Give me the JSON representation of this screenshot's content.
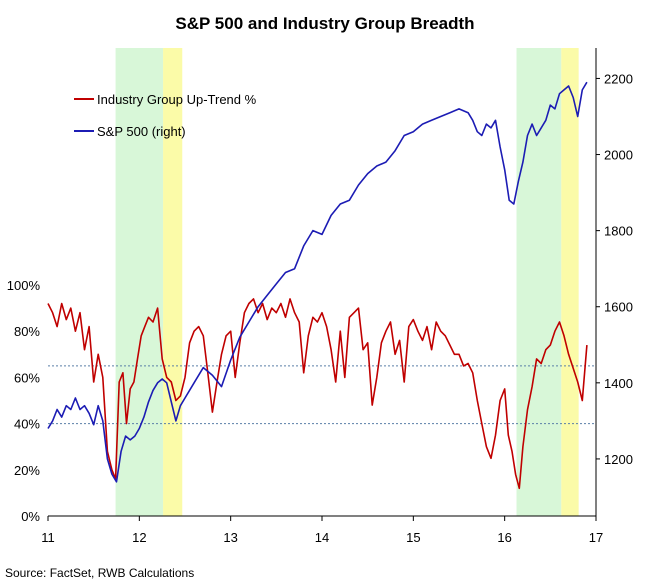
{
  "chart_data": {
    "type": "line",
    "title": "S&P 500 and Industry Group Breadth",
    "source": "Source: FactSet, RWB Calculations",
    "x_ticks": [
      "11",
      "12",
      "13",
      "14",
      "15",
      "16",
      "17"
    ],
    "xlim": [
      2011,
      2017
    ],
    "y_left": {
      "ticks": [
        "0%",
        "20%",
        "40%",
        "60%",
        "80%",
        "100%"
      ],
      "values": [
        0,
        20,
        40,
        60,
        80,
        100
      ],
      "lim": [
        0,
        100
      ]
    },
    "y_right": {
      "ticks": [
        "1200",
        "1400",
        "1600",
        "1800",
        "2000",
        "2200"
      ],
      "values": [
        1200,
        1400,
        1600,
        1800,
        2000,
        2200
      ],
      "lim": [
        1050,
        2280
      ]
    },
    "reference_lines": [
      65,
      40
    ],
    "shaded_regions": [
      {
        "from": 2011.74,
        "to": 2012.26,
        "color": "#d8f7d8"
      },
      {
        "from": 2012.26,
        "to": 2012.47,
        "color": "#fbfba8"
      },
      {
        "from": 2016.13,
        "to": 2016.62,
        "color": "#d8f7d8"
      },
      {
        "from": 2016.62,
        "to": 2016.81,
        "color": "#fbfba8"
      }
    ],
    "legend_position": "top-left",
    "series": [
      {
        "name": "Industry Group Up-Trend %",
        "axis": "left",
        "color": "#c00000",
        "x": [
          2011.0,
          2011.05,
          2011.1,
          2011.15,
          2011.2,
          2011.25,
          2011.3,
          2011.35,
          2011.4,
          2011.45,
          2011.5,
          2011.55,
          2011.6,
          2011.65,
          2011.7,
          2011.74,
          2011.78,
          2011.82,
          2011.86,
          2011.9,
          2011.94,
          2011.98,
          2012.02,
          2012.06,
          2012.1,
          2012.15,
          2012.2,
          2012.25,
          2012.3,
          2012.35,
          2012.4,
          2012.45,
          2012.5,
          2012.55,
          2012.6,
          2012.65,
          2012.7,
          2012.75,
          2012.8,
          2012.85,
          2012.9,
          2012.95,
          2013.0,
          2013.05,
          2013.1,
          2013.15,
          2013.2,
          2013.25,
          2013.3,
          2013.35,
          2013.4,
          2013.45,
          2013.5,
          2013.55,
          2013.6,
          2013.65,
          2013.7,
          2013.75,
          2013.8,
          2013.85,
          2013.9,
          2013.95,
          2014.0,
          2014.05,
          2014.1,
          2014.15,
          2014.2,
          2014.25,
          2014.3,
          2014.35,
          2014.4,
          2014.45,
          2014.5,
          2014.55,
          2014.6,
          2014.65,
          2014.7,
          2014.75,
          2014.8,
          2014.85,
          2014.9,
          2014.95,
          2015.0,
          2015.05,
          2015.1,
          2015.15,
          2015.2,
          2015.25,
          2015.3,
          2015.35,
          2015.4,
          2015.45,
          2015.5,
          2015.55,
          2015.6,
          2015.65,
          2015.7,
          2015.75,
          2015.8,
          2015.85,
          2015.9,
          2015.95,
          2016.0,
          2016.04,
          2016.08,
          2016.12,
          2016.16,
          2016.2,
          2016.25,
          2016.3,
          2016.35,
          2016.4,
          2016.45,
          2016.5,
          2016.55,
          2016.6,
          2016.65,
          2016.7,
          2016.75,
          2016.8,
          2016.85,
          2016.9
        ],
        "values": [
          92,
          88,
          82,
          92,
          85,
          90,
          80,
          88,
          72,
          82,
          58,
          70,
          60,
          28,
          20,
          16,
          58,
          62,
          40,
          55,
          58,
          68,
          78,
          82,
          86,
          84,
          90,
          68,
          60,
          58,
          50,
          52,
          60,
          75,
          80,
          82,
          78,
          62,
          45,
          58,
          70,
          78,
          80,
          60,
          75,
          88,
          92,
          94,
          88,
          92,
          85,
          90,
          88,
          92,
          86,
          94,
          88,
          84,
          62,
          78,
          86,
          84,
          88,
          82,
          72,
          58,
          80,
          60,
          86,
          88,
          90,
          72,
          75,
          48,
          60,
          75,
          80,
          84,
          70,
          76,
          58,
          82,
          85,
          80,
          76,
          82,
          72,
          84,
          80,
          78,
          74,
          70,
          70,
          65,
          66,
          62,
          50,
          40,
          30,
          25,
          35,
          50,
          55,
          35,
          28,
          18,
          12,
          30,
          46,
          56,
          68,
          66,
          72,
          74,
          80,
          84,
          78,
          70,
          64,
          58,
          50,
          74
        ]
      },
      {
        "name": "S&P 500 (right)",
        "axis": "right",
        "color": "#1c1cb4",
        "x": [
          2011.0,
          2011.05,
          2011.1,
          2011.15,
          2011.2,
          2011.25,
          2011.3,
          2011.35,
          2011.4,
          2011.45,
          2011.5,
          2011.55,
          2011.6,
          2011.65,
          2011.7,
          2011.75,
          2011.8,
          2011.85,
          2011.9,
          2011.95,
          2012.0,
          2012.05,
          2012.1,
          2012.15,
          2012.2,
          2012.25,
          2012.3,
          2012.35,
          2012.4,
          2012.45,
          2012.5,
          2012.6,
          2012.7,
          2012.8,
          2012.9,
          2013.0,
          2013.1,
          2013.2,
          2013.3,
          2013.4,
          2013.5,
          2013.6,
          2013.7,
          2013.8,
          2013.9,
          2014.0,
          2014.1,
          2014.2,
          2014.3,
          2014.4,
          2014.5,
          2014.6,
          2014.7,
          2014.8,
          2014.9,
          2015.0,
          2015.1,
          2015.2,
          2015.3,
          2015.4,
          2015.5,
          2015.6,
          2015.65,
          2015.7,
          2015.75,
          2015.8,
          2015.85,
          2015.9,
          2015.95,
          2016.0,
          2016.05,
          2016.1,
          2016.15,
          2016.2,
          2016.25,
          2016.3,
          2016.35,
          2016.4,
          2016.45,
          2016.5,
          2016.55,
          2016.6,
          2016.65,
          2016.7,
          2016.75,
          2016.8,
          2016.85,
          2016.9
        ],
        "values": [
          1280,
          1300,
          1330,
          1310,
          1340,
          1330,
          1360,
          1330,
          1340,
          1320,
          1290,
          1340,
          1300,
          1200,
          1160,
          1140,
          1220,
          1260,
          1250,
          1260,
          1280,
          1310,
          1350,
          1380,
          1400,
          1410,
          1400,
          1350,
          1300,
          1340,
          1360,
          1400,
          1440,
          1420,
          1390,
          1460,
          1520,
          1560,
          1600,
          1630,
          1660,
          1690,
          1700,
          1760,
          1800,
          1790,
          1840,
          1870,
          1880,
          1920,
          1950,
          1970,
          1980,
          2010,
          2050,
          2060,
          2080,
          2090,
          2100,
          2110,
          2120,
          2110,
          2090,
          2060,
          2050,
          2080,
          2070,
          2090,
          2020,
          1960,
          1880,
          1870,
          1930,
          1980,
          2050,
          2080,
          2050,
          2070,
          2090,
          2130,
          2120,
          2160,
          2170,
          2180,
          2150,
          2100,
          2170,
          2190
        ]
      }
    ]
  }
}
